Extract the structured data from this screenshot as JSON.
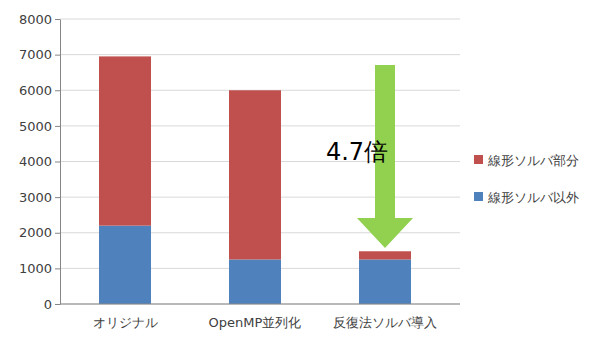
{
  "chart_data": {
    "type": "bar",
    "stacked": true,
    "categories": [
      "オリジナル",
      "OpenMP並列化",
      "反復法ソルバ導入"
    ],
    "series": [
      {
        "name": "線形ソルバ以外",
        "color": "#4f81bd",
        "values": [
          2200,
          1250,
          1250
        ]
      },
      {
        "name": "線形ソルバ部分",
        "color": "#c0504d",
        "values": [
          4750,
          4750,
          230
        ]
      }
    ],
    "ylim": [
      0,
      8000
    ],
    "yticks": [
      0,
      1000,
      2000,
      3000,
      4000,
      5000,
      6000,
      7000,
      8000
    ],
    "grid": true,
    "legend": "right",
    "annotations": [
      {
        "text": "4.7倍"
      }
    ]
  }
}
